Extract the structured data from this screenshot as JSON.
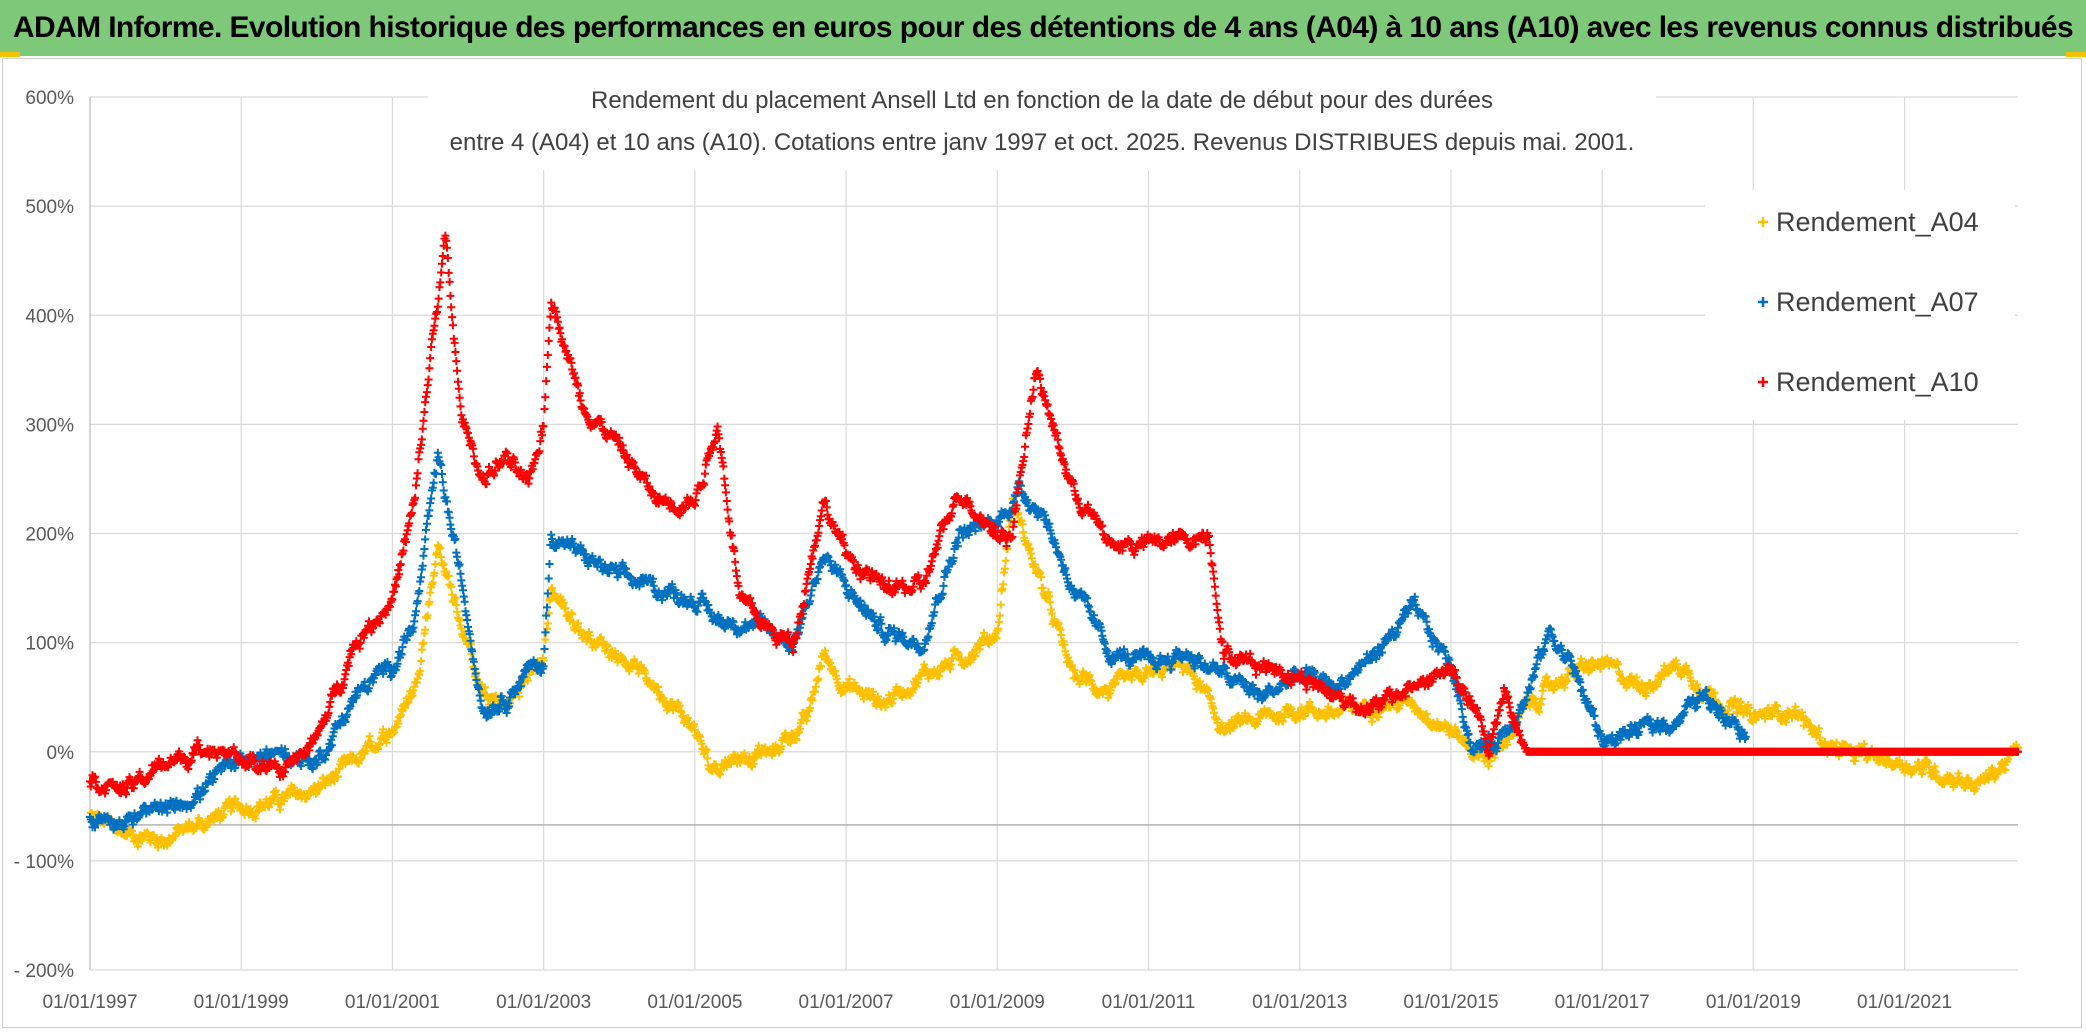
{
  "banner": {
    "title": "ADAM Informe. Evolution historique des performances en euros pour des détentions de 4 ans (A04) à 10 ans (A10) avec les revenus connus distribués"
  },
  "colors": {
    "banner_bg": "#7ec87a",
    "A04": "#ffc000",
    "A07": "#0070c0",
    "A10": "#ff0000"
  },
  "chart_data": {
    "type": "scatter",
    "title_lines": [
      "Rendement du placement Ansell Ltd  en fonction de la date de début pour des durées",
      "entre 4 (A04) et 10 ans (A10). Cotations entre janv 1997 et oct. 2025. Revenus DISTRIBUES depuis mai. 2001."
    ],
    "xlabel": "",
    "ylabel": "",
    "x_unit": "year",
    "xlim": [
      1997.0,
      2022.5
    ],
    "ylim": [
      -200,
      600
    ],
    "y_ticks": [
      600,
      500,
      400,
      300,
      200,
      100,
      0,
      -100,
      -200
    ],
    "y_tick_labels": [
      "600%",
      "500%",
      "400%",
      "300%",
      "200%",
      "100%",
      "0%",
      "- 100%",
      "- 200%"
    ],
    "x_ticks": [
      1997,
      1999,
      2001,
      2003,
      2005,
      2007,
      2009,
      2011,
      2013,
      2015,
      2017,
      2019,
      2021
    ],
    "x_tick_labels": [
      "01/01/1997",
      "01/01/1999",
      "01/01/2001",
      "01/01/2003",
      "01/01/2005",
      "01/01/2007",
      "01/01/2009",
      "01/01/2011",
      "01/01/2013",
      "01/01/2015",
      "01/01/2017",
      "01/01/2019",
      "01/01/2021"
    ],
    "grid": true,
    "marker": "+",
    "legend_position": "top-right",
    "series": [
      {
        "name": "Rendement_A04",
        "x": [
          1997.0,
          1997.5,
          1998.0,
          1998.5,
          1999.0,
          1999.5,
          2000.0,
          2000.5,
          2001.0,
          2001.3,
          2001.6,
          2001.9,
          2002.2,
          2002.5,
          2002.8,
          2003.0,
          2003.1,
          2003.5,
          2004.0,
          2004.5,
          2005.0,
          2005.2,
          2005.5,
          2006.0,
          2006.5,
          2006.7,
          2007.0,
          2007.5,
          2008.0,
          2008.5,
          2009.0,
          2009.2,
          2009.5,
          2010.0,
          2010.5,
          2011.0,
          2011.5,
          2012.0,
          2012.5,
          2013.0,
          2013.5,
          2014.0,
          2014.5,
          2015.0,
          2015.5,
          2016.0,
          2016.5,
          2017.0,
          2017.5,
          2018.0,
          2018.5,
          2019.0,
          2019.5,
          2020.0,
          2020.5,
          2021.0,
          2021.5,
          2022.0,
          2022.5
        ],
        "y": [
          -60,
          -75,
          -80,
          -65,
          -50,
          -45,
          -35,
          -10,
          20,
          60,
          190,
          120,
          50,
          40,
          70,
          85,
          150,
          110,
          90,
          60,
          20,
          -15,
          -5,
          0,
          30,
          90,
          60,
          45,
          70,
          85,
          110,
          230,
          170,
          70,
          55,
          70,
          80,
          20,
          30,
          40,
          35,
          45,
          45,
          20,
          -10,
          40,
          70,
          80,
          60,
          80,
          50,
          30,
          40,
          5,
          -5,
          -10,
          -20,
          -30,
          0
        ]
      },
      {
        "name": "Rendement_A07",
        "x": [
          1997.0,
          1997.5,
          1998.0,
          1998.5,
          1999.0,
          1999.5,
          2000.0,
          2000.5,
          2001.0,
          2001.3,
          2001.6,
          2001.9,
          2002.2,
          2002.5,
          2002.8,
          2003.0,
          2003.1,
          2003.5,
          2004.0,
          2004.5,
          2005.0,
          2005.3,
          2005.6,
          2006.0,
          2006.3,
          2006.7,
          2007.0,
          2007.5,
          2008.0,
          2008.5,
          2009.0,
          2009.3,
          2009.6,
          2010.0,
          2010.5,
          2011.0,
          2011.5,
          2012.0,
          2012.5,
          2013.0,
          2013.5,
          2014.0,
          2014.5,
          2015.0,
          2015.3,
          2015.6,
          2016.0,
          2016.3,
          2016.6,
          2017.0,
          2017.5,
          2018.0,
          2018.3,
          2018.6,
          2018.9
        ],
        "y": [
          -60,
          -62,
          -55,
          -35,
          -5,
          0,
          -10,
          50,
          80,
          120,
          270,
          160,
          40,
          50,
          75,
          80,
          200,
          180,
          160,
          150,
          140,
          120,
          120,
          110,
          100,
          180,
          150,
          110,
          100,
          200,
          210,
          240,
          220,
          150,
          90,
          80,
          90,
          70,
          50,
          70,
          60,
          90,
          130,
          80,
          0,
          10,
          50,
          110,
          80,
          10,
          20,
          30,
          50,
          40,
          20
        ]
      },
      {
        "name": "Rendement_A10",
        "x": [
          1997.0,
          1997.5,
          1998.0,
          1998.5,
          1999.0,
          1999.5,
          2000.0,
          2000.5,
          2001.0,
          2001.3,
          2001.5,
          2001.7,
          2001.9,
          2002.2,
          2002.5,
          2002.8,
          2003.0,
          2003.1,
          2003.5,
          2004.0,
          2004.5,
          2005.0,
          2005.3,
          2005.6,
          2006.0,
          2006.3,
          2006.7,
          2007.0,
          2007.5,
          2008.0,
          2008.5,
          2009.0,
          2009.2,
          2009.5,
          2010.0,
          2010.5,
          2011.0,
          2011.5,
          2011.8,
          2012.0,
          2012.5,
          2013.0,
          2013.5,
          2014.0,
          2014.5,
          2015.0,
          2015.3,
          2015.5,
          2015.7,
          2016.0,
          2017.0,
          2018.0,
          2019.0,
          2020.0,
          2021.0,
          2022.0,
          2022.5
        ],
        "y": [
          -25,
          -35,
          -10,
          0,
          -5,
          -20,
          10,
          100,
          140,
          230,
          360,
          470,
          310,
          250,
          270,
          240,
          300,
          420,
          320,
          280,
          230,
          230,
          300,
          140,
          110,
          100,
          230,
          180,
          150,
          150,
          240,
          200,
          200,
          350,
          240,
          190,
          190,
          195,
          200,
          90,
          80,
          70,
          50,
          40,
          60,
          75,
          40,
          0,
          60,
          0,
          0,
          0,
          0,
          0,
          0,
          0,
          0
        ]
      }
    ]
  }
}
